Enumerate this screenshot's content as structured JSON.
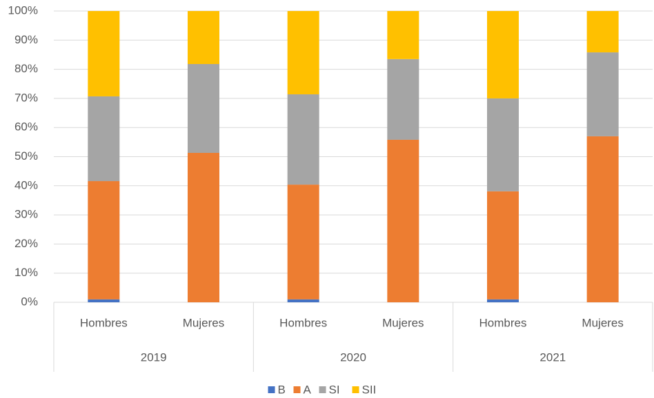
{
  "chart_data": {
    "type": "stacked_bar",
    "categories": [
      "Hombres",
      "Mujeres",
      "Hombres",
      "Mujeres",
      "Hombres",
      "Mujeres"
    ],
    "groups": [
      "2019",
      "2020",
      "2021"
    ],
    "series": [
      {
        "name": "B",
        "color": "#4472c4",
        "values": [
          1,
          0,
          1,
          0,
          1,
          0
        ]
      },
      {
        "name": "A",
        "color": "#ed7d31",
        "values": [
          40.6,
          51.3,
          39.4,
          55.8,
          37.1,
          57.0
        ]
      },
      {
        "name": "SI",
        "color": "#a5a5a5",
        "values": [
          29.1,
          30.5,
          31.0,
          27.7,
          31.9,
          28.8
        ]
      },
      {
        "name": "SII",
        "color": "#ffc000",
        "values": [
          29.3,
          18.2,
          28.6,
          16.5,
          30.0,
          14.2
        ]
      }
    ],
    "ylim": [
      0,
      100
    ],
    "yticks": [
      {
        "value": 0,
        "label": "0%"
      },
      {
        "value": 10,
        "label": "10%"
      },
      {
        "value": 20,
        "label": "20%"
      },
      {
        "value": 30,
        "label": "30%"
      },
      {
        "value": 40,
        "label": "40%"
      },
      {
        "value": 50,
        "label": "50%"
      },
      {
        "value": 60,
        "label": "60%"
      },
      {
        "value": 70,
        "label": "70%"
      },
      {
        "value": 80,
        "label": "80%"
      },
      {
        "value": 90,
        "label": "90%"
      },
      {
        "value": 100,
        "label": "100%"
      }
    ],
    "grid": true,
    "legend": "bottom"
  }
}
